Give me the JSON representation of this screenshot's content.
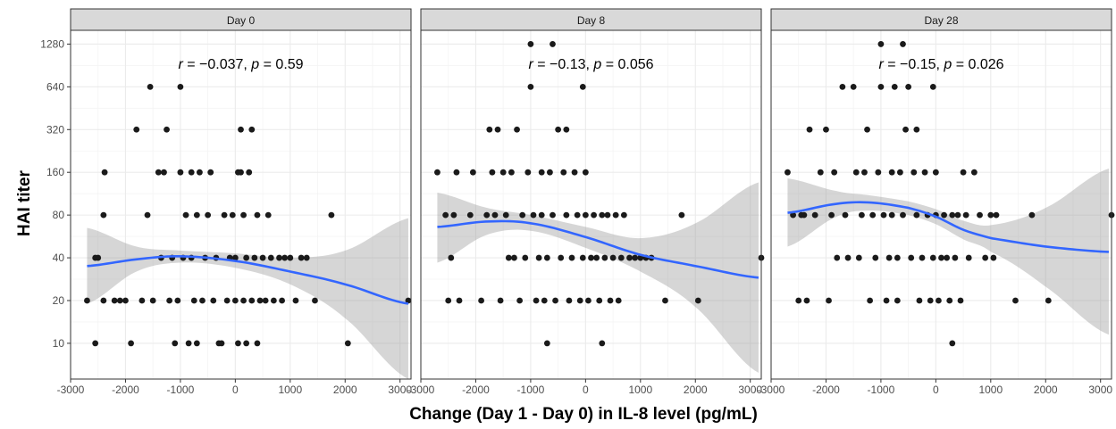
{
  "chart_data": {
    "type": "scatter",
    "xlabel": "Change (Day 1 - Day 0) in IL-8 level (pg/mL)",
    "ylabel": "HAI titer",
    "y_scale": "log2",
    "xlim": [
      -3000,
      3200
    ],
    "ylim": [
      5.6,
      1600
    ],
    "x_ticks": [
      -3000,
      -2000,
      -1000,
      0,
      1000,
      2000,
      3000
    ],
    "x_tick_labels": [
      "-3000",
      "-2000",
      "-1000",
      "0",
      "1000",
      "2000",
      "3000"
    ],
    "y_ticks": [
      10,
      20,
      40,
      80,
      160,
      320,
      640,
      1280
    ],
    "y_tick_labels": [
      "10",
      "20",
      "40",
      "80",
      "160",
      "320",
      "640",
      "1280"
    ],
    "grid": true,
    "colors": {
      "points": "#1a1a1a",
      "smooth_line": "#3366ff",
      "ribbon": "#999999",
      "panel_grid": "#ebebeb",
      "strip_fill": "#d9d9d9"
    },
    "panels": [
      {
        "strip": "Day 0",
        "annotation": {
          "r": "−0.037",
          "p": "0.59"
        },
        "points": [
          [
            -2700,
            20
          ],
          [
            -2550,
            40
          ],
          [
            -2500,
            40
          ],
          [
            -2400,
            80
          ],
          [
            -2380,
            160
          ],
          [
            -2550,
            10
          ],
          [
            -2400,
            20
          ],
          [
            -2200,
            20
          ],
          [
            -2100,
            20
          ],
          [
            -2000,
            20
          ],
          [
            -1900,
            10
          ],
          [
            -1800,
            320
          ],
          [
            -1700,
            20
          ],
          [
            -1600,
            80
          ],
          [
            -1550,
            640
          ],
          [
            -1500,
            20
          ],
          [
            -1400,
            160
          ],
          [
            -1350,
            40
          ],
          [
            -1300,
            160
          ],
          [
            -1250,
            320
          ],
          [
            -1200,
            20
          ],
          [
            -1150,
            40
          ],
          [
            -1100,
            10
          ],
          [
            -1050,
            20
          ],
          [
            -1000,
            640
          ],
          [
            -1000,
            160
          ],
          [
            -950,
            40
          ],
          [
            -900,
            80
          ],
          [
            -850,
            10
          ],
          [
            -800,
            160
          ],
          [
            -800,
            40
          ],
          [
            -750,
            20
          ],
          [
            -700,
            10
          ],
          [
            -700,
            80
          ],
          [
            -650,
            160
          ],
          [
            -600,
            20
          ],
          [
            -550,
            40
          ],
          [
            -500,
            80
          ],
          [
            -450,
            160
          ],
          [
            -400,
            20
          ],
          [
            -350,
            40
          ],
          [
            -300,
            10
          ],
          [
            -250,
            10
          ],
          [
            -200,
            80
          ],
          [
            -150,
            20
          ],
          [
            -100,
            40
          ],
          [
            -50,
            80
          ],
          [
            0,
            20
          ],
          [
            0,
            40
          ],
          [
            50,
            10
          ],
          [
            50,
            160
          ],
          [
            100,
            160
          ],
          [
            100,
            320
          ],
          [
            150,
            80
          ],
          [
            150,
            20
          ],
          [
            200,
            40
          ],
          [
            200,
            10
          ],
          [
            250,
            160
          ],
          [
            300,
            320
          ],
          [
            300,
            20
          ],
          [
            350,
            40
          ],
          [
            400,
            80
          ],
          [
            400,
            10
          ],
          [
            450,
            20
          ],
          [
            500,
            40
          ],
          [
            550,
            20
          ],
          [
            600,
            80
          ],
          [
            650,
            40
          ],
          [
            700,
            20
          ],
          [
            800,
            40
          ],
          [
            850,
            20
          ],
          [
            900,
            40
          ],
          [
            1000,
            40
          ],
          [
            1100,
            20
          ],
          [
            1200,
            40
          ],
          [
            1300,
            40
          ],
          [
            1450,
            20
          ],
          [
            1750,
            80
          ],
          [
            2050,
            10
          ],
          [
            3150,
            20
          ]
        ],
        "smooth": [
          [
            -2700,
            35
          ],
          [
            -1800,
            39
          ],
          [
            -1000,
            41
          ],
          [
            0,
            38
          ],
          [
            1000,
            32
          ],
          [
            2000,
            26
          ],
          [
            3150,
            19
          ]
        ],
        "ribbon_upper": [
          [
            -2700,
            65
          ],
          [
            -1800,
            48
          ],
          [
            -1000,
            45
          ],
          [
            0,
            43
          ],
          [
            1000,
            40
          ],
          [
            2000,
            45
          ],
          [
            3150,
            76
          ]
        ],
        "ribbon_lower": [
          [
            -2700,
            19
          ],
          [
            -1800,
            32
          ],
          [
            -1000,
            37
          ],
          [
            0,
            34
          ],
          [
            1000,
            26
          ],
          [
            2000,
            15
          ],
          [
            3150,
            5.6
          ]
        ]
      },
      {
        "strip": "Day 8",
        "annotation": {
          "r": "−0.13",
          "p": "0.056"
        },
        "points": [
          [
            -2700,
            160
          ],
          [
            -2550,
            80
          ],
          [
            -2500,
            20
          ],
          [
            -2450,
            40
          ],
          [
            -2400,
            80
          ],
          [
            -2350,
            160
          ],
          [
            -2300,
            20
          ],
          [
            -2100,
            80
          ],
          [
            -2050,
            160
          ],
          [
            -1900,
            20
          ],
          [
            -1800,
            80
          ],
          [
            -1750,
            320
          ],
          [
            -1700,
            160
          ],
          [
            -1650,
            80
          ],
          [
            -1600,
            320
          ],
          [
            -1550,
            20
          ],
          [
            -1500,
            160
          ],
          [
            -1450,
            80
          ],
          [
            -1400,
            40
          ],
          [
            -1350,
            160
          ],
          [
            -1300,
            40
          ],
          [
            -1250,
            320
          ],
          [
            -1200,
            20
          ],
          [
            -1150,
            80
          ],
          [
            -1100,
            40
          ],
          [
            -1050,
            160
          ],
          [
            -1000,
            1280
          ],
          [
            -1000,
            640
          ],
          [
            -950,
            80
          ],
          [
            -900,
            20
          ],
          [
            -850,
            40
          ],
          [
            -800,
            160
          ],
          [
            -800,
            80
          ],
          [
            -750,
            20
          ],
          [
            -700,
            10
          ],
          [
            -700,
            40
          ],
          [
            -650,
            160
          ],
          [
            -600,
            80
          ],
          [
            -600,
            1280
          ],
          [
            -550,
            20
          ],
          [
            -500,
            320
          ],
          [
            -450,
            40
          ],
          [
            -400,
            160
          ],
          [
            -350,
            320
          ],
          [
            -350,
            80
          ],
          [
            -300,
            20
          ],
          [
            -250,
            40
          ],
          [
            -200,
            160
          ],
          [
            -150,
            80
          ],
          [
            -100,
            20
          ],
          [
            -50,
            640
          ],
          [
            -50,
            40
          ],
          [
            0,
            160
          ],
          [
            0,
            80
          ],
          [
            50,
            20
          ],
          [
            100,
            40
          ],
          [
            150,
            80
          ],
          [
            200,
            40
          ],
          [
            250,
            20
          ],
          [
            300,
            10
          ],
          [
            300,
            80
          ],
          [
            350,
            40
          ],
          [
            400,
            80
          ],
          [
            450,
            20
          ],
          [
            500,
            40
          ],
          [
            550,
            80
          ],
          [
            600,
            20
          ],
          [
            650,
            40
          ],
          [
            700,
            80
          ],
          [
            800,
            40
          ],
          [
            900,
            40
          ],
          [
            1000,
            40
          ],
          [
            1100,
            40
          ],
          [
            1200,
            40
          ],
          [
            1450,
            20
          ],
          [
            1750,
            80
          ],
          [
            2050,
            20
          ],
          [
            3200,
            40
          ]
        ],
        "smooth": [
          [
            -2700,
            66
          ],
          [
            -1800,
            72
          ],
          [
            -1000,
            70
          ],
          [
            0,
            56
          ],
          [
            1000,
            42
          ],
          [
            2000,
            35
          ],
          [
            3150,
            29
          ]
        ],
        "ribbon_upper": [
          [
            -2700,
            115
          ],
          [
            -1800,
            90
          ],
          [
            -1000,
            80
          ],
          [
            0,
            66
          ],
          [
            1000,
            55
          ],
          [
            2000,
            70
          ],
          [
            3150,
            136
          ]
        ],
        "ribbon_lower": [
          [
            -2700,
            37
          ],
          [
            -1800,
            58
          ],
          [
            -1000,
            62
          ],
          [
            0,
            47
          ],
          [
            1000,
            32
          ],
          [
            2000,
            18
          ],
          [
            3150,
            6.2
          ]
        ]
      },
      {
        "strip": "Day 28",
        "annotation": {
          "r": "−0.15",
          "p": "0.026"
        },
        "points": [
          [
            -2700,
            160
          ],
          [
            -2600,
            80
          ],
          [
            -2500,
            20
          ],
          [
            -2450,
            80
          ],
          [
            -2400,
            80
          ],
          [
            -2350,
            20
          ],
          [
            -2300,
            320
          ],
          [
            -2200,
            80
          ],
          [
            -2100,
            160
          ],
          [
            -2000,
            320
          ],
          [
            -1950,
            20
          ],
          [
            -1900,
            80
          ],
          [
            -1850,
            160
          ],
          [
            -1800,
            40
          ],
          [
            -1700,
            640
          ],
          [
            -1650,
            80
          ],
          [
            -1600,
            40
          ],
          [
            -1500,
            640
          ],
          [
            -1450,
            160
          ],
          [
            -1400,
            40
          ],
          [
            -1350,
            80
          ],
          [
            -1300,
            160
          ],
          [
            -1250,
            320
          ],
          [
            -1200,
            20
          ],
          [
            -1150,
            80
          ],
          [
            -1100,
            40
          ],
          [
            -1050,
            160
          ],
          [
            -1000,
            1280
          ],
          [
            -1000,
            640
          ],
          [
            -950,
            80
          ],
          [
            -900,
            20
          ],
          [
            -850,
            40
          ],
          [
            -800,
            160
          ],
          [
            -800,
            80
          ],
          [
            -750,
            640
          ],
          [
            -700,
            20
          ],
          [
            -700,
            40
          ],
          [
            -650,
            160
          ],
          [
            -600,
            80
          ],
          [
            -600,
            1280
          ],
          [
            -550,
            320
          ],
          [
            -500,
            640
          ],
          [
            -450,
            40
          ],
          [
            -400,
            160
          ],
          [
            -350,
            320
          ],
          [
            -350,
            80
          ],
          [
            -300,
            20
          ],
          [
            -250,
            40
          ],
          [
            -200,
            160
          ],
          [
            -150,
            80
          ],
          [
            -100,
            20
          ],
          [
            -50,
            640
          ],
          [
            -50,
            40
          ],
          [
            0,
            160
          ],
          [
            0,
            80
          ],
          [
            50,
            20
          ],
          [
            100,
            40
          ],
          [
            150,
            80
          ],
          [
            200,
            40
          ],
          [
            250,
            20
          ],
          [
            300,
            10
          ],
          [
            300,
            80
          ],
          [
            350,
            40
          ],
          [
            400,
            80
          ],
          [
            450,
            20
          ],
          [
            500,
            160
          ],
          [
            550,
            80
          ],
          [
            600,
            40
          ],
          [
            700,
            160
          ],
          [
            800,
            80
          ],
          [
            900,
            40
          ],
          [
            1000,
            80
          ],
          [
            1050,
            40
          ],
          [
            1100,
            80
          ],
          [
            1450,
            20
          ],
          [
            1750,
            80
          ],
          [
            2050,
            20
          ],
          [
            3200,
            80
          ]
        ],
        "smooth": [
          [
            -2700,
            83
          ],
          [
            -1800,
            96
          ],
          [
            -1200,
            98
          ],
          [
            -500,
            90
          ],
          [
            0,
            78
          ],
          [
            500,
            63
          ],
          [
            1000,
            55
          ],
          [
            2000,
            48
          ],
          [
            3150,
            44
          ]
        ],
        "ribbon_upper": [
          [
            -2700,
            145
          ],
          [
            -1800,
            118
          ],
          [
            -1200,
            110
          ],
          [
            -500,
            100
          ],
          [
            0,
            88
          ],
          [
            500,
            73
          ],
          [
            1000,
            68
          ],
          [
            2000,
            90
          ],
          [
            3150,
            170
          ]
        ],
        "ribbon_lower": [
          [
            -2700,
            48
          ],
          [
            -1800,
            78
          ],
          [
            -1200,
            86
          ],
          [
            -500,
            80
          ],
          [
            0,
            69
          ],
          [
            500,
            54
          ],
          [
            1000,
            44
          ],
          [
            2000,
            25
          ],
          [
            3150,
            11.5
          ]
        ]
      }
    ]
  }
}
